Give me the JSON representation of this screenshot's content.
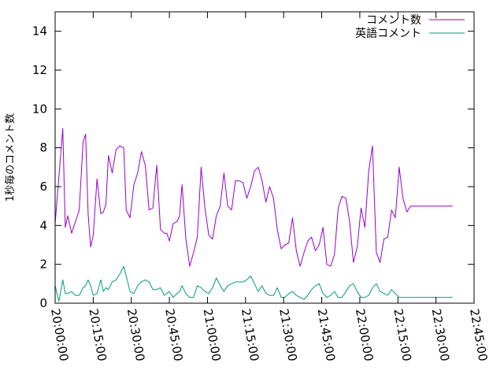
{
  "chart_data": {
    "type": "line",
    "title": "",
    "xlabel": "",
    "ylabel": "1秒毎のコメント数",
    "ylim": [
      0,
      15
    ],
    "yticks": [
      0,
      2,
      4,
      6,
      8,
      10,
      12,
      14
    ],
    "xlim": [
      "20:00:00",
      "22:45:00"
    ],
    "xticks": [
      "20:00:00",
      "20:15:00",
      "20:30:00",
      "20:45:00",
      "21:00:00",
      "21:15:00",
      "21:30:00",
      "21:45:00",
      "22:00:00",
      "22:15:00",
      "22:30:00",
      "22:45:00"
    ],
    "grid": false,
    "legend_position": "top-right",
    "series": [
      {
        "name": "コメント数",
        "color": "#9400d3",
        "x": [
          "20:00:00",
          "20:01:30",
          "20:03:00",
          "20:04:00",
          "20:05:00",
          "20:06:30",
          "20:08:00",
          "20:09:30",
          "20:11:00",
          "20:12:00",
          "20:13:00",
          "20:14:00",
          "20:15:00",
          "20:16:30",
          "20:18:00",
          "20:19:00",
          "20:20:00",
          "20:21:00",
          "20:22:30",
          "20:24:00",
          "20:25:30",
          "20:27:00",
          "20:28:00",
          "20:29:30",
          "20:31:00",
          "20:32:30",
          "20:34:00",
          "20:35:30",
          "20:37:00",
          "20:38:30",
          "20:40:00",
          "20:41:30",
          "20:43:00",
          "20:44:00",
          "20:45:00",
          "20:46:30",
          "20:48:00",
          "20:49:00",
          "20:50:00",
          "20:51:30",
          "20:53:00",
          "20:54:30",
          "20:56:00",
          "20:57:30",
          "20:59:00",
          "21:00:30",
          "21:02:00",
          "21:03:30",
          "21:05:00",
          "21:06:30",
          "21:08:00",
          "21:09:30",
          "21:11:00",
          "21:12:30",
          "21:14:00",
          "21:15:30",
          "21:17:00",
          "21:18:30",
          "21:20:00",
          "21:21:30",
          "21:23:00",
          "21:24:30",
          "21:26:00",
          "21:27:30",
          "21:29:00",
          "21:30:30",
          "21:32:00",
          "21:33:30",
          "21:35:00",
          "21:36:30",
          "21:38:00",
          "21:39:30",
          "21:41:00",
          "21:42:30",
          "21:44:00",
          "21:45:30",
          "21:47:00",
          "21:48:30",
          "21:50:00",
          "21:51:30",
          "21:53:00",
          "21:54:30",
          "21:56:00",
          "21:57:30",
          "21:59:00",
          "22:00:30",
          "22:02:00",
          "22:03:30",
          "22:05:00",
          "22:06:30",
          "22:08:00",
          "22:09:30",
          "22:11:00",
          "22:12:30",
          "22:14:00",
          "22:15:30",
          "22:17:00",
          "22:18:30",
          "22:20:00",
          "22:21:30",
          "22:23:00",
          "22:24:30",
          "22:26:00",
          "22:27:30",
          "22:29:00",
          "22:30:30",
          "22:32:00",
          "22:33:30",
          "22:35:00",
          "22:36:30"
        ],
        "values": [
          4.1,
          6.5,
          9.0,
          3.9,
          4.5,
          3.6,
          4.2,
          4.8,
          8.3,
          8.7,
          4.6,
          2.9,
          3.5,
          6.4,
          4.6,
          4.7,
          5.1,
          7.6,
          6.7,
          7.9,
          8.1,
          8.0,
          4.8,
          4.4,
          6.1,
          6.7,
          7.8,
          7.1,
          4.8,
          4.9,
          7.1,
          3.8,
          3.6,
          3.6,
          3.2,
          4.1,
          4.2,
          4.5,
          6.1,
          3.3,
          1.9,
          2.6,
          3.4,
          7.0,
          4.9,
          3.5,
          3.3,
          4.5,
          5.0,
          6.7,
          5.0,
          4.8,
          6.3,
          6.3,
          6.2,
          5.4,
          6.0,
          6.8,
          7.0,
          6.3,
          5.2,
          6.0,
          5.4,
          3.8,
          2.8,
          3.0,
          3.1,
          4.4,
          2.7,
          1.9,
          2.6,
          3.2,
          3.4,
          2.7,
          3.0,
          3.9,
          2.0,
          1.9,
          2.5,
          4.9,
          5.5,
          5.4,
          4.2,
          2.1,
          2.9,
          4.9,
          3.9,
          6.8,
          8.1,
          2.6,
          2.1,
          3.3,
          3.4,
          4.8,
          4.4,
          7.0,
          5.4,
          4.7,
          5.0,
          5.0,
          5.0,
          5.0,
          5.0,
          5.0,
          5.0,
          5.0,
          5.0,
          5.0,
          5.0,
          5.0
        ]
      },
      {
        "name": "英語コメント",
        "color": "#009e73",
        "x": [
          "20:00:00",
          "20:01:30",
          "20:03:00",
          "20:04:00",
          "20:05:00",
          "20:06:30",
          "20:08:00",
          "20:09:30",
          "20:11:00",
          "20:12:00",
          "20:13:00",
          "20:14:00",
          "20:15:00",
          "20:16:30",
          "20:18:00",
          "20:19:00",
          "20:20:00",
          "20:21:00",
          "20:22:30",
          "20:24:00",
          "20:25:30",
          "20:27:00",
          "20:28:00",
          "20:29:30",
          "20:31:00",
          "20:32:30",
          "20:34:00",
          "20:35:30",
          "20:37:00",
          "20:38:30",
          "20:40:00",
          "20:41:30",
          "20:43:00",
          "20:44:00",
          "20:45:00",
          "20:46:30",
          "20:48:00",
          "20:49:00",
          "20:50:00",
          "20:51:30",
          "20:53:00",
          "20:54:30",
          "20:56:00",
          "20:57:30",
          "20:59:00",
          "21:00:30",
          "21:02:00",
          "21:03:30",
          "21:05:00",
          "21:06:30",
          "21:08:00",
          "21:09:30",
          "21:11:00",
          "21:12:30",
          "21:14:00",
          "21:15:30",
          "21:17:00",
          "21:18:30",
          "21:20:00",
          "21:21:30",
          "21:23:00",
          "21:24:30",
          "21:26:00",
          "21:27:30",
          "21:29:00",
          "21:30:30",
          "21:32:00",
          "21:33:30",
          "21:35:00",
          "21:36:30",
          "21:38:00",
          "21:39:30",
          "21:41:00",
          "21:42:30",
          "21:44:00",
          "21:45:30",
          "21:47:00",
          "21:48:30",
          "21:50:00",
          "21:51:30",
          "21:53:00",
          "21:54:30",
          "21:56:00",
          "21:57:30",
          "21:59:00",
          "22:00:30",
          "22:02:00",
          "22:03:30",
          "22:05:00",
          "22:06:30",
          "22:08:00",
          "22:09:30",
          "22:11:00",
          "22:12:30",
          "22:14:00",
          "22:15:30",
          "22:17:00",
          "22:18:30",
          "22:20:00",
          "22:21:30",
          "22:23:00",
          "22:24:30",
          "22:26:00",
          "22:27:30",
          "22:29:00",
          "22:30:30",
          "22:32:00",
          "22:33:30",
          "22:35:00",
          "22:36:30"
        ],
        "values": [
          0.9,
          0.1,
          1.2,
          0.5,
          0.5,
          0.6,
          0.4,
          0.4,
          0.8,
          0.9,
          1.2,
          0.9,
          0.4,
          0.5,
          1.2,
          0.6,
          0.8,
          0.7,
          1.1,
          1.2,
          1.5,
          1.9,
          1.4,
          0.6,
          0.5,
          0.9,
          1.1,
          1.2,
          1.1,
          0.7,
          0.7,
          0.8,
          0.4,
          0.5,
          0.6,
          0.3,
          0.5,
          0.6,
          0.9,
          0.5,
          0.3,
          0.3,
          0.9,
          0.8,
          0.6,
          0.5,
          0.8,
          1.3,
          0.9,
          0.6,
          0.9,
          1.0,
          1.1,
          1.1,
          1.1,
          1.2,
          1.4,
          1.0,
          0.6,
          0.9,
          0.5,
          0.4,
          0.4,
          0.8,
          0.3,
          0.3,
          0.5,
          0.6,
          0.4,
          0.3,
          0.2,
          0.4,
          0.7,
          0.9,
          1.0,
          0.5,
          0.3,
          0.4,
          0.6,
          0.3,
          0.3,
          0.6,
          0.9,
          1.0,
          0.6,
          0.3,
          0.3,
          0.4,
          0.8,
          1.0,
          0.6,
          0.5,
          0.4,
          0.7,
          0.5,
          0.3,
          0.3,
          0.3,
          0.3,
          0.3,
          0.3,
          0.3,
          0.3,
          0.3,
          0.3,
          0.3,
          0.3,
          0.3,
          0.3,
          0.3
        ]
      }
    ]
  }
}
